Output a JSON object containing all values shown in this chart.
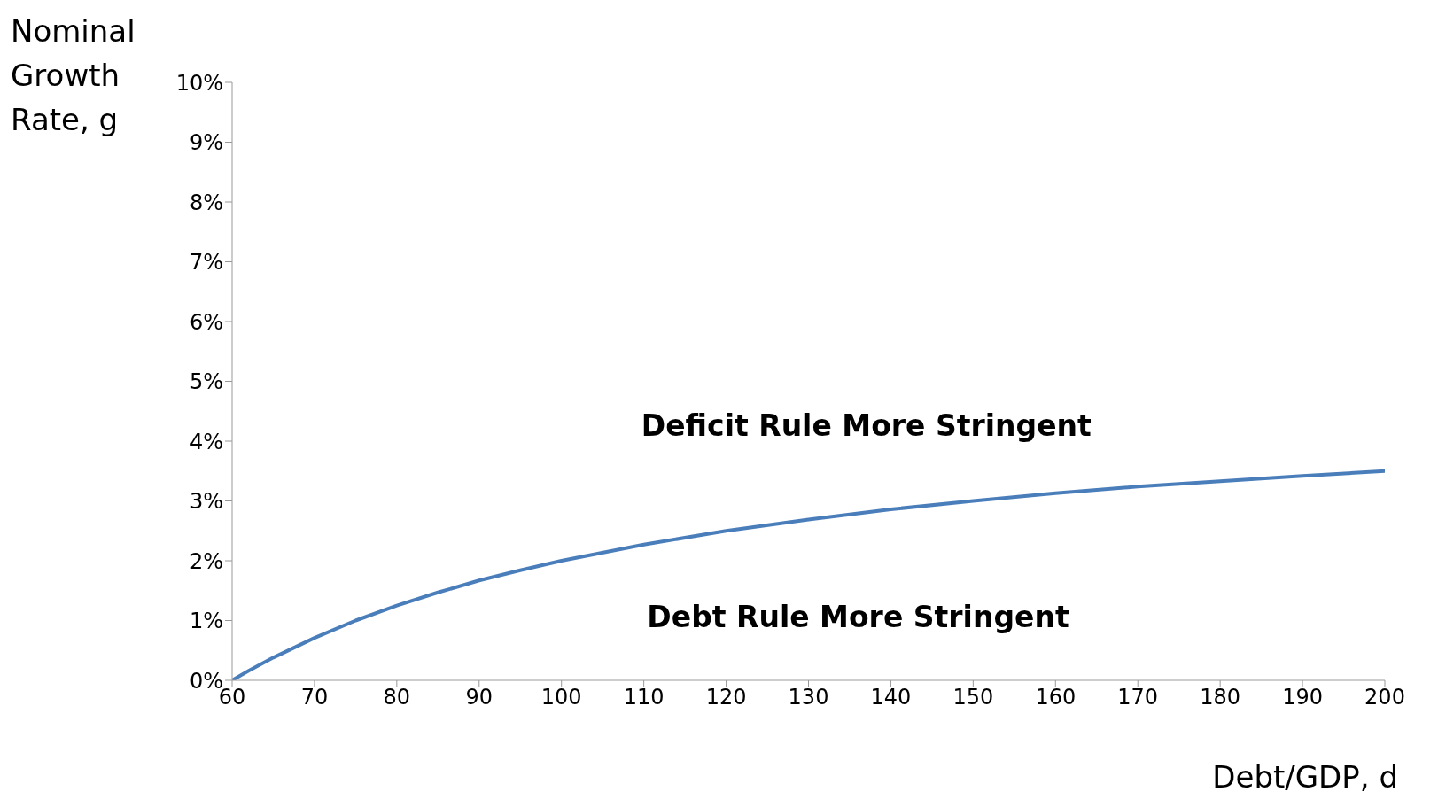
{
  "chart_data": {
    "type": "line",
    "xlabel": "Debt/GDP, d",
    "ylabel": "Nominal Growth Rate, g",
    "x": [
      60,
      62,
      65,
      70,
      75,
      80,
      85,
      90,
      95,
      100,
      110,
      120,
      130,
      140,
      150,
      160,
      170,
      180,
      190,
      200
    ],
    "series": [
      {
        "color": "#4a7ebb",
        "values": [
          0,
          0.16,
          0.38,
          0.71,
          1.0,
          1.25,
          1.47,
          1.67,
          1.84,
          2.0,
          2.27,
          2.5,
          2.69,
          2.86,
          3.0,
          3.13,
          3.24,
          3.33,
          3.42,
          3.5
        ]
      }
    ],
    "xlim": [
      60,
      200
    ],
    "xticks": [
      60,
      70,
      80,
      90,
      100,
      110,
      120,
      130,
      140,
      150,
      160,
      170,
      180,
      190,
      200
    ],
    "ylim": [
      0,
      10
    ],
    "yticks": [
      {
        "value": 0,
        "label": "0%"
      },
      {
        "value": 1,
        "label": "1%"
      },
      {
        "value": 2,
        "label": "2%"
      },
      {
        "value": 3,
        "label": "3%"
      },
      {
        "value": 4,
        "label": "4%"
      },
      {
        "value": 5,
        "label": "5%"
      },
      {
        "value": 6,
        "label": "6%"
      },
      {
        "value": 7,
        "label": "7%"
      },
      {
        "value": 8,
        "label": "8%"
      },
      {
        "value": 9,
        "label": "9%"
      },
      {
        "value": 10,
        "label": "10%"
      }
    ],
    "annotations": [
      "Deficit Rule More Stringent",
      "Debt Rule More Stringent"
    ],
    "grid": false,
    "legend": false,
    "marker": "none",
    "line_style": "solid"
  }
}
